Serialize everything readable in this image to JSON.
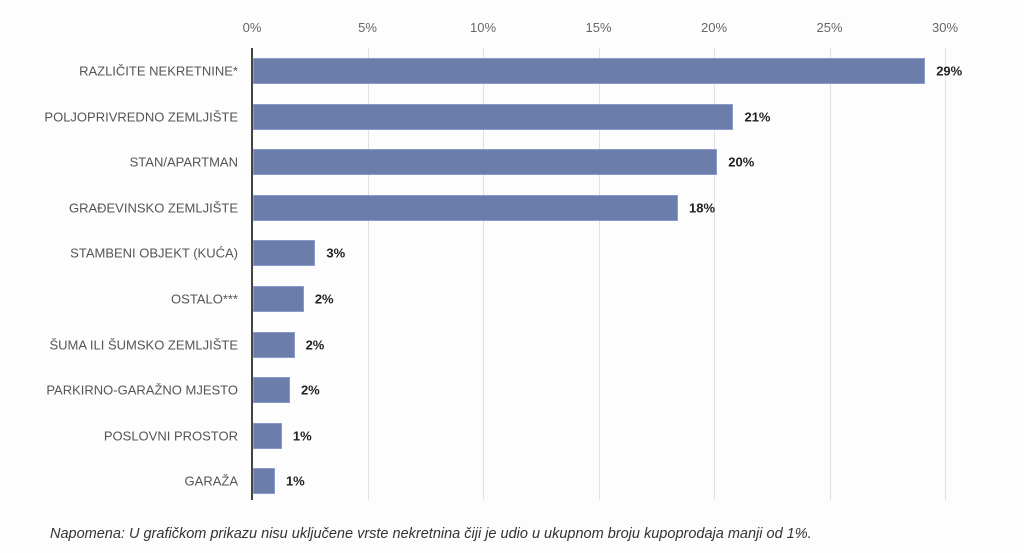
{
  "chart_data": {
    "type": "bar",
    "orientation": "horizontal",
    "title": "",
    "xlabel": "",
    "ylabel": "",
    "xlim": [
      0,
      30
    ],
    "x_ticks": [
      "0%",
      "5%",
      "10%",
      "15%",
      "20%",
      "25%",
      "30%"
    ],
    "grid": true,
    "legend": null,
    "categories": [
      "RAZLIČITE NEKRETNINE*",
      "POLJOPRIVREDNO ZEMLJIŠTE",
      "STAN/APARTMAN",
      "GRAĐEVINSKO ZEMLJIŠTE",
      "STAMBENI OBJEKT (KUĆA)",
      "OSTALO***",
      "ŠUMA ILI ŠUMSKO ZEMLJIŠTE",
      "PARKIRNO-GARAŽNO MJESTO",
      "POSLOVNI PROSTOR",
      "GARAŽA"
    ],
    "values": [
      29.1,
      20.8,
      20.1,
      18.4,
      2.7,
      2.2,
      1.8,
      1.6,
      1.25,
      0.95
    ],
    "data_labels": [
      "29%",
      "21%",
      "20%",
      "18%",
      "3%",
      "2%",
      "2%",
      "2%",
      "1%",
      "1%"
    ],
    "bar_color": "#6a7dab",
    "note": "Napomena: U grafičkom prikazu nisu uključene vrste nekretnina čiji je udio u ukupnom broju kupoprodaja manji od 1%."
  }
}
